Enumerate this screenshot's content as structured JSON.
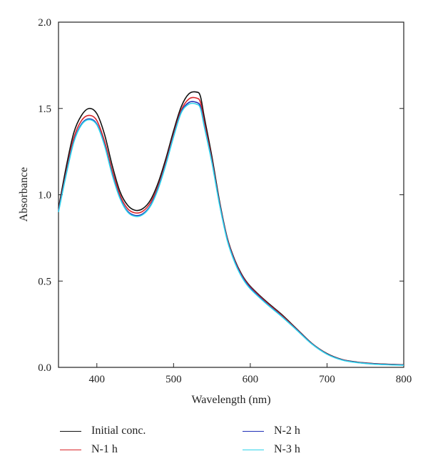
{
  "chart_data": {
    "type": "line",
    "xlabel": "Wavelength (nm)",
    "ylabel": "Absorbance",
    "xlim": [
      350,
      800
    ],
    "ylim": [
      0,
      2.0
    ],
    "xticks": [
      400,
      500,
      600,
      700,
      800
    ],
    "yticks": [
      0,
      0.5,
      1.0,
      1.5,
      2.0
    ],
    "ytick_labels": [
      "0.0",
      "0.5",
      "1.0",
      "1.5",
      "2.0"
    ],
    "xtick_labels": [
      "400",
      "500",
      "600",
      "700",
      "800"
    ],
    "grid": false,
    "legend_position": "bottom",
    "series": [
      {
        "name": "Initial conc.",
        "color": "#111111",
        "x": [
          350,
          360,
          370,
          380,
          390,
          400,
          410,
          420,
          430,
          440,
          450,
          460,
          470,
          480,
          490,
          500,
          510,
          520,
          530,
          535,
          540,
          550,
          560,
          570,
          580,
          590,
          600,
          620,
          640,
          660,
          680,
          700,
          720,
          740,
          760,
          780,
          800
        ],
        "y": [
          0.92,
          1.16,
          1.36,
          1.46,
          1.5,
          1.47,
          1.35,
          1.17,
          1.02,
          0.94,
          0.91,
          0.92,
          0.97,
          1.07,
          1.21,
          1.37,
          1.51,
          1.585,
          1.595,
          1.57,
          1.45,
          1.22,
          0.96,
          0.75,
          0.62,
          0.53,
          0.47,
          0.385,
          0.31,
          0.225,
          0.14,
          0.08,
          0.045,
          0.03,
          0.022,
          0.018,
          0.015
        ]
      },
      {
        "name": "N-1 h",
        "color": "#d9262a",
        "x": [
          350,
          360,
          370,
          380,
          390,
          400,
          410,
          420,
          430,
          440,
          450,
          460,
          470,
          480,
          490,
          500,
          510,
          520,
          530,
          535,
          540,
          550,
          560,
          570,
          580,
          590,
          600,
          620,
          640,
          660,
          680,
          700,
          720,
          740,
          760,
          780,
          800
        ],
        "y": [
          0.91,
          1.13,
          1.33,
          1.43,
          1.46,
          1.43,
          1.31,
          1.14,
          1.0,
          0.92,
          0.895,
          0.905,
          0.955,
          1.05,
          1.19,
          1.35,
          1.49,
          1.555,
          1.56,
          1.535,
          1.42,
          1.2,
          0.95,
          0.745,
          0.615,
          0.525,
          0.465,
          0.38,
          0.305,
          0.222,
          0.138,
          0.078,
          0.044,
          0.029,
          0.021,
          0.017,
          0.014
        ]
      },
      {
        "name": "N-2 h",
        "color": "#1f2fb8",
        "x": [
          350,
          360,
          370,
          380,
          390,
          400,
          410,
          420,
          430,
          440,
          450,
          460,
          470,
          480,
          490,
          500,
          510,
          520,
          530,
          535,
          540,
          550,
          560,
          570,
          580,
          590,
          600,
          620,
          640,
          660,
          680,
          700,
          720,
          740,
          760,
          780,
          800
        ],
        "y": [
          0.905,
          1.12,
          1.31,
          1.41,
          1.44,
          1.41,
          1.29,
          1.12,
          0.985,
          0.905,
          0.88,
          0.89,
          0.94,
          1.04,
          1.18,
          1.34,
          1.48,
          1.535,
          1.535,
          1.51,
          1.4,
          1.19,
          0.945,
          0.74,
          0.61,
          0.52,
          0.46,
          0.375,
          0.3,
          0.22,
          0.137,
          0.077,
          0.043,
          0.028,
          0.02,
          0.016,
          0.013
        ]
      },
      {
        "name": "N-3 h",
        "color": "#2fd3ea",
        "x": [
          350,
          360,
          370,
          380,
          390,
          400,
          410,
          420,
          430,
          440,
          450,
          460,
          470,
          480,
          490,
          500,
          510,
          520,
          530,
          535,
          540,
          550,
          560,
          570,
          580,
          590,
          600,
          620,
          640,
          660,
          680,
          700,
          720,
          740,
          760,
          780,
          800
        ],
        "y": [
          0.9,
          1.115,
          1.305,
          1.405,
          1.435,
          1.405,
          1.285,
          1.115,
          0.98,
          0.9,
          0.875,
          0.885,
          0.935,
          1.035,
          1.175,
          1.335,
          1.475,
          1.525,
          1.525,
          1.5,
          1.395,
          1.185,
          0.94,
          0.735,
          0.605,
          0.515,
          0.455,
          0.372,
          0.298,
          0.218,
          0.136,
          0.076,
          0.042,
          0.027,
          0.019,
          0.015,
          0.012
        ]
      }
    ]
  }
}
